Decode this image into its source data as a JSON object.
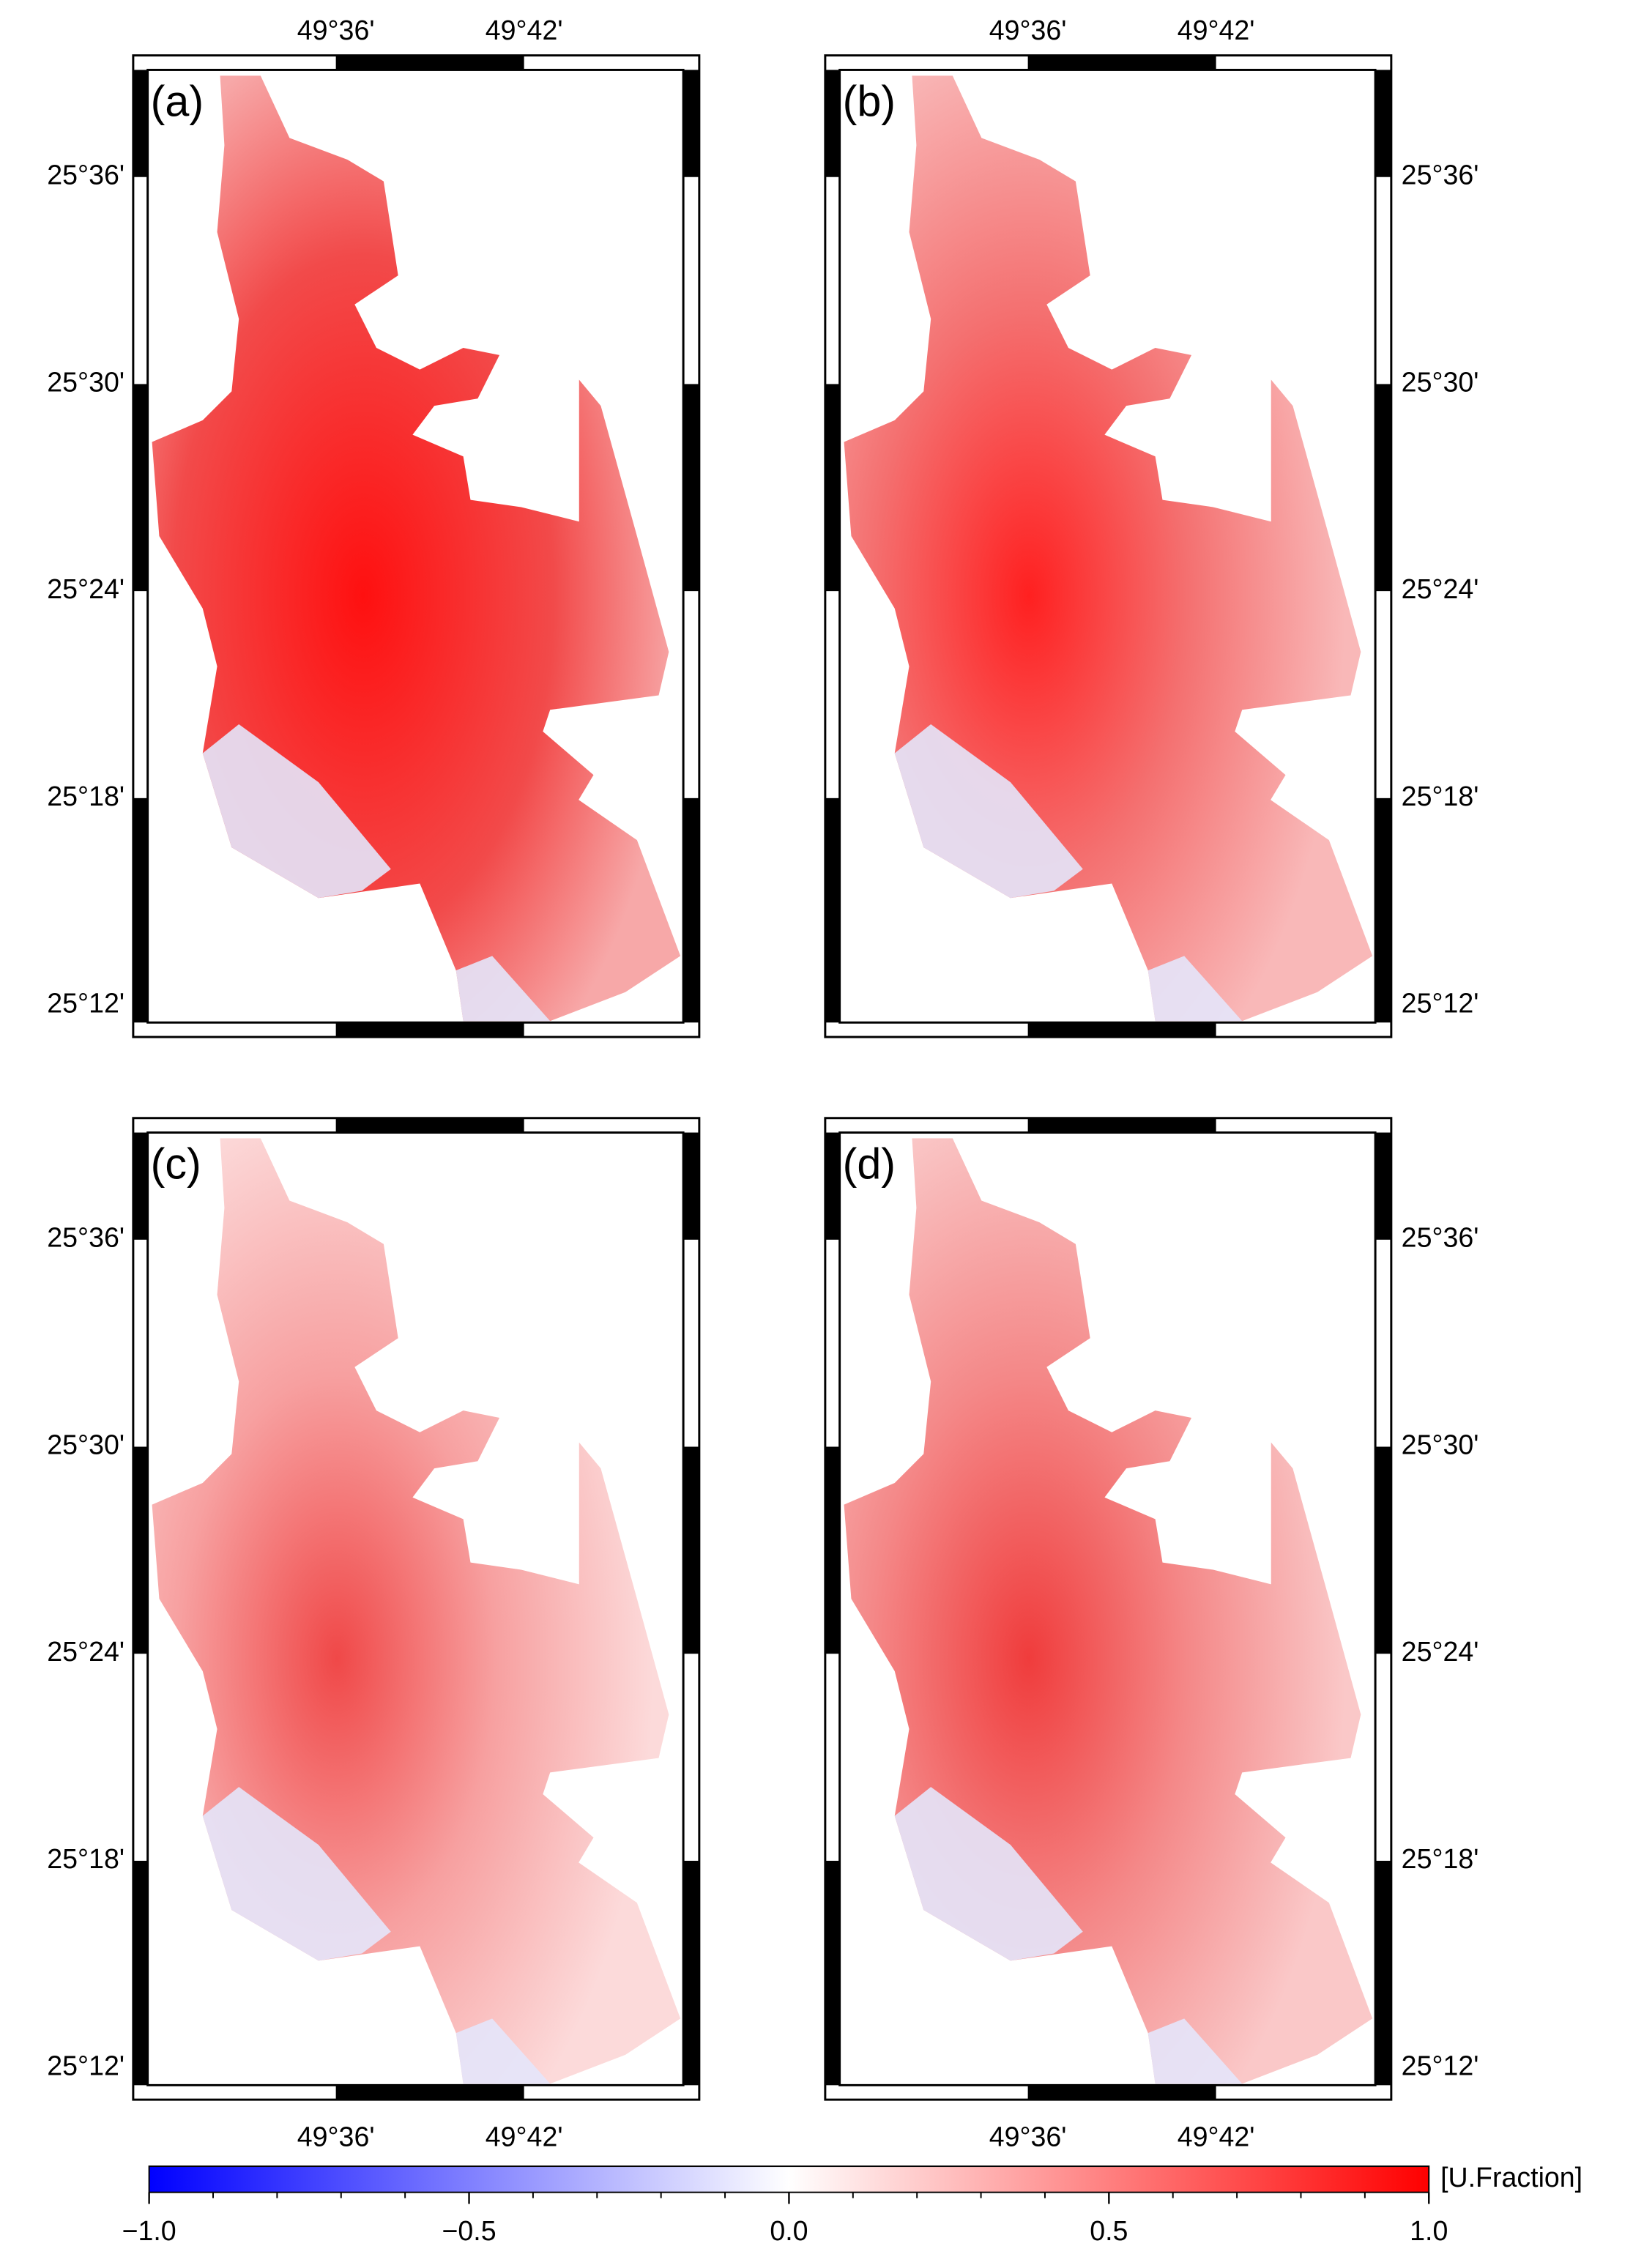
{
  "panels": [
    {
      "label": "(a)"
    },
    {
      "label": "(b)"
    },
    {
      "label": "(c)"
    },
    {
      "label": "(d)"
    }
  ],
  "longitude_labels": [
    "49°36'",
    "49°42'"
  ],
  "latitude_labels": [
    "25°36'",
    "25°30'",
    "25°24'",
    "25°18'",
    "25°12'"
  ],
  "colorbar": {
    "label": "[U.Fraction]",
    "ticks": [
      {
        "value": -1,
        "label": "−1.0"
      },
      {
        "value": -0.5,
        "label": "−0.5"
      },
      {
        "value": 0,
        "label": "0.0"
      },
      {
        "value": 0.5,
        "label": "0.5"
      },
      {
        "value": 1,
        "label": "1.0"
      }
    ]
  }
}
